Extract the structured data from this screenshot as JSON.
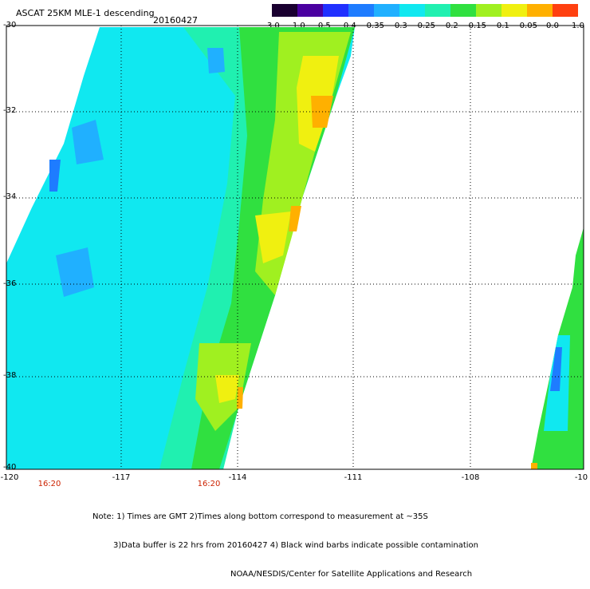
{
  "header": {
    "title": "ASCAT 25KM MLE-1 descending",
    "date": "20160427"
  },
  "colorbar": {
    "tick_labels": [
      "-3.0",
      "-1.0",
      "-0.5",
      "-0.4",
      "-0.35",
      "-0.3",
      "-0.25",
      "-0.2",
      "-0.15",
      "-0.1",
      "-0.05",
      "0.0",
      "1.0"
    ],
    "colors": [
      "#1a0030",
      "#4a00a0",
      "#2030ff",
      "#1e7cff",
      "#20b0ff",
      "#10e8f0",
      "#20f0b0",
      "#30e040",
      "#a0f020",
      "#f0f010",
      "#ffb000",
      "#ff4010"
    ]
  },
  "map": {
    "lat_labels": [
      "-30",
      "-32",
      "-34",
      "-36",
      "-38",
      "-40"
    ],
    "lon_labels": [
      "-120",
      "-117",
      "-114",
      "-111",
      "-108",
      "-10"
    ],
    "time_labels": [
      "16:20",
      "16:20"
    ]
  },
  "notes": {
    "line1": "Note: 1) Times are GMT 2)Times along bottom correspond to measurement at ~35S",
    "line2": "3)Data buffer is 22 hrs from 20160427 4) Black wind barbs indicate possible contamination",
    "line3": "NOAA/NESDIS/Center for Satellite Applications and Research"
  }
}
